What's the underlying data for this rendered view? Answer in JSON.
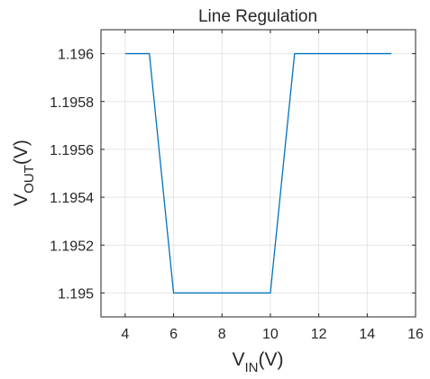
{
  "chart_data": {
    "type": "line",
    "title": "Line Regulation",
    "xlabel": {
      "main": "V",
      "sub": "IN",
      "unit": "(V)"
    },
    "ylabel": {
      "main": "V",
      "sub": "OUT",
      "unit": "(V)"
    },
    "xlim": [
      3,
      16
    ],
    "ylim": [
      1.1949,
      1.1961
    ],
    "xticks": [
      4,
      6,
      8,
      10,
      12,
      14,
      16
    ],
    "xtick_labels": [
      "4",
      "6",
      "8",
      "10",
      "12",
      "14",
      "16"
    ],
    "yticks": [
      1.195,
      1.1952,
      1.1954,
      1.1956,
      1.1958,
      1.196
    ],
    "ytick_labels": [
      "1.195",
      "1.1952",
      "1.1954",
      "1.1956",
      "1.1958",
      "1.196"
    ],
    "grid": true,
    "series": [
      {
        "color": "#0072BD",
        "x": [
          4,
          5,
          6,
          7,
          8,
          9,
          10,
          11,
          12,
          13,
          14,
          15
        ],
        "y": [
          1.196,
          1.196,
          1.195,
          1.195,
          1.195,
          1.195,
          1.195,
          1.196,
          1.196,
          1.196,
          1.196,
          1.196
        ]
      }
    ]
  }
}
